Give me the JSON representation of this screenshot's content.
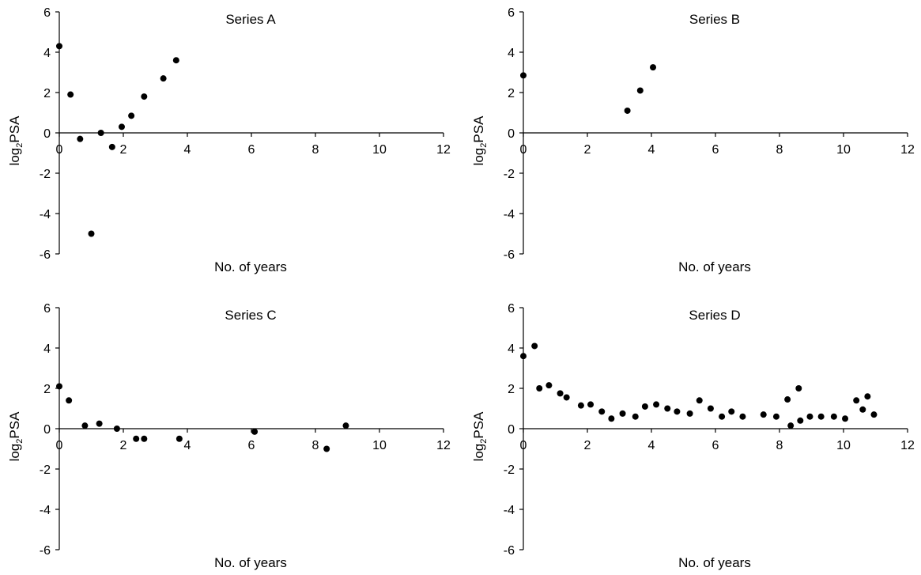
{
  "chart_data": [
    {
      "type": "scatter",
      "title": "Series A",
      "xlabel": "No. of years",
      "ylabel": "log2PSA",
      "ylabel_parts": {
        "prefix": "log",
        "sub": "2",
        "suffix": "PSA"
      },
      "xlim": [
        0,
        12
      ],
      "ylim": [
        -6,
        6
      ],
      "x_ticks": [
        0,
        2,
        4,
        6,
        8,
        10,
        12
      ],
      "y_ticks": [
        6,
        4,
        2,
        0,
        -2,
        -4,
        -6
      ],
      "grid": false,
      "color": "#000000",
      "points": [
        {
          "x": 0.0,
          "y": 4.3
        },
        {
          "x": 0.35,
          "y": 1.9
        },
        {
          "x": 0.65,
          "y": -0.3
        },
        {
          "x": 1.0,
          "y": -5.0
        },
        {
          "x": 1.3,
          "y": 0.0
        },
        {
          "x": 1.65,
          "y": -0.7
        },
        {
          "x": 1.95,
          "y": 0.3
        },
        {
          "x": 2.25,
          "y": 0.85
        },
        {
          "x": 2.65,
          "y": 1.8
        },
        {
          "x": 3.25,
          "y": 2.7
        },
        {
          "x": 3.65,
          "y": 3.6
        }
      ]
    },
    {
      "type": "scatter",
      "title": "Series B",
      "xlabel": "No. of years",
      "ylabel": "log2PSA",
      "ylabel_parts": {
        "prefix": "log",
        "sub": "2",
        "suffix": "PSA"
      },
      "xlim": [
        0,
        12
      ],
      "ylim": [
        -6,
        6
      ],
      "x_ticks": [
        0,
        2,
        4,
        6,
        8,
        10,
        12
      ],
      "y_ticks": [
        6,
        4,
        2,
        0,
        -2,
        -4,
        -6
      ],
      "grid": false,
      "color": "#000000",
      "points": [
        {
          "x": 0.0,
          "y": 2.85
        },
        {
          "x": 3.25,
          "y": 1.1
        },
        {
          "x": 3.65,
          "y": 2.1
        },
        {
          "x": 4.05,
          "y": 3.25
        }
      ]
    },
    {
      "type": "scatter",
      "title": "Series C",
      "xlabel": "No. of years",
      "ylabel": "log2PSA",
      "ylabel_parts": {
        "prefix": "log",
        "sub": "2",
        "suffix": "PSA"
      },
      "xlim": [
        0,
        12
      ],
      "ylim": [
        -6,
        6
      ],
      "x_ticks": [
        0,
        2,
        4,
        6,
        8,
        10,
        12
      ],
      "y_ticks": [
        6,
        4,
        2,
        0,
        -2,
        -4,
        -6
      ],
      "grid": false,
      "color": "#000000",
      "points": [
        {
          "x": 0.0,
          "y": 2.1
        },
        {
          "x": 0.3,
          "y": 1.4
        },
        {
          "x": 0.8,
          "y": 0.15
        },
        {
          "x": 1.25,
          "y": 0.25
        },
        {
          "x": 1.8,
          "y": 0.0
        },
        {
          "x": 2.4,
          "y": -0.5
        },
        {
          "x": 2.65,
          "y": -0.5
        },
        {
          "x": 3.75,
          "y": -0.5
        },
        {
          "x": 6.1,
          "y": -0.15
        },
        {
          "x": 8.35,
          "y": -1.0
        },
        {
          "x": 8.95,
          "y": 0.15
        }
      ]
    },
    {
      "type": "scatter",
      "title": "Series D",
      "xlabel": "No. of years",
      "ylabel": "log2PSA",
      "ylabel_parts": {
        "prefix": "log",
        "sub": "2",
        "suffix": "PSA"
      },
      "xlim": [
        0,
        12
      ],
      "ylim": [
        -6,
        6
      ],
      "x_ticks": [
        0,
        2,
        4,
        6,
        8,
        10,
        12
      ],
      "y_ticks": [
        6,
        4,
        2,
        0,
        -2,
        -4,
        -6
      ],
      "grid": false,
      "color": "#000000",
      "points": [
        {
          "x": 0.0,
          "y": 3.6
        },
        {
          "x": 0.35,
          "y": 4.1
        },
        {
          "x": 0.5,
          "y": 2.0
        },
        {
          "x": 0.8,
          "y": 2.15
        },
        {
          "x": 1.15,
          "y": 1.75
        },
        {
          "x": 1.35,
          "y": 1.55
        },
        {
          "x": 1.8,
          "y": 1.15
        },
        {
          "x": 2.1,
          "y": 1.2
        },
        {
          "x": 2.45,
          "y": 0.85
        },
        {
          "x": 2.75,
          "y": 0.5
        },
        {
          "x": 3.1,
          "y": 0.75
        },
        {
          "x": 3.5,
          "y": 0.6
        },
        {
          "x": 3.8,
          "y": 1.1
        },
        {
          "x": 4.15,
          "y": 1.2
        },
        {
          "x": 4.5,
          "y": 1.0
        },
        {
          "x": 4.8,
          "y": 0.85
        },
        {
          "x": 5.2,
          "y": 0.75
        },
        {
          "x": 5.5,
          "y": 1.4
        },
        {
          "x": 5.85,
          "y": 1.0
        },
        {
          "x": 6.2,
          "y": 0.6
        },
        {
          "x": 6.5,
          "y": 0.85
        },
        {
          "x": 6.85,
          "y": 0.6
        },
        {
          "x": 7.5,
          "y": 0.7
        },
        {
          "x": 7.9,
          "y": 0.6
        },
        {
          "x": 8.25,
          "y": 1.45
        },
        {
          "x": 8.35,
          "y": 0.15
        },
        {
          "x": 8.6,
          "y": 2.0
        },
        {
          "x": 8.65,
          "y": 0.4
        },
        {
          "x": 8.95,
          "y": 0.6
        },
        {
          "x": 9.3,
          "y": 0.6
        },
        {
          "x": 9.7,
          "y": 0.6
        },
        {
          "x": 10.05,
          "y": 0.5
        },
        {
          "x": 10.4,
          "y": 1.4
        },
        {
          "x": 10.6,
          "y": 0.95
        },
        {
          "x": 10.75,
          "y": 1.6
        },
        {
          "x": 10.95,
          "y": 0.7
        }
      ]
    }
  ]
}
